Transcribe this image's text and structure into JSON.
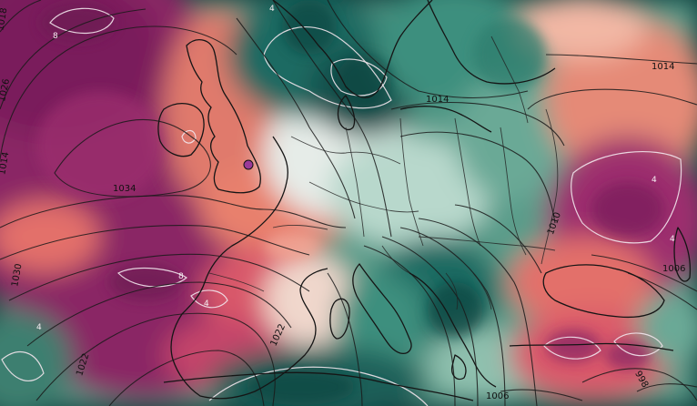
{
  "map": {
    "colors": {
      "deep_magenta": "#7a1f5c",
      "magenta": "#9c2f6e",
      "salmon": "#e8806d",
      "peach": "#f2b7a4",
      "pale": "#e6ece8",
      "mint": "#a8cfc0",
      "teal": "#3d8f7e",
      "deep_teal": "#0f5a55"
    },
    "isobar_labels": [
      {
        "id": "l1034",
        "text": "1034"
      },
      {
        "id": "l1014a",
        "text": "1014"
      },
      {
        "id": "l1014b",
        "text": "1014"
      },
      {
        "id": "l1010",
        "text": "1010"
      },
      {
        "id": "l1006a",
        "text": "1006"
      },
      {
        "id": "l1006b",
        "text": "1006"
      },
      {
        "id": "l1030",
        "text": "1030"
      },
      {
        "id": "l1022a",
        "text": "1022"
      },
      {
        "id": "l1022b",
        "text": "1022"
      },
      {
        "id": "l1018",
        "text": "1018"
      },
      {
        "id": "l1026",
        "text": "1026"
      },
      {
        "id": "l1014c",
        "text": "1014"
      },
      {
        "id": "l998",
        "text": "998"
      }
    ],
    "isotherm_labels": [
      {
        "id": "t8a",
        "text": "8"
      },
      {
        "id": "t8b",
        "text": "8"
      },
      {
        "id": "t4a",
        "text": "4"
      },
      {
        "id": "t4b",
        "text": "4"
      },
      {
        "id": "t4c",
        "text": "4"
      },
      {
        "id": "t4d",
        "text": "4"
      },
      {
        "id": "t4e",
        "text": "4"
      }
    ]
  }
}
